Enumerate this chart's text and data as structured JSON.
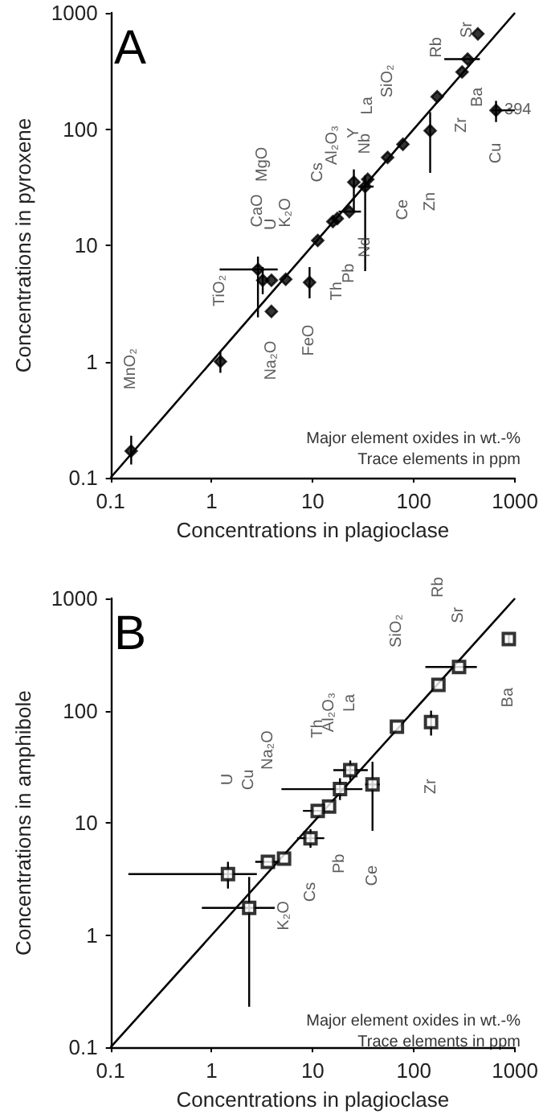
{
  "chart_data": [
    {
      "type": "scatter",
      "title": "A",
      "xlabel": "Concentrations in plagioclase",
      "ylabel": "Concentrations in pyroxene",
      "log": "xy",
      "xlim": [
        0.1,
        1000
      ],
      "ylim": [
        0.1,
        1000
      ],
      "xticks": [
        0.1,
        1,
        10,
        100,
        1000
      ],
      "yticks": [
        0.1,
        1,
        10,
        100,
        1000
      ],
      "grid": false,
      "marker": "diamond",
      "series": [
        {
          "color": "#000000",
          "x": [
            0.16,
            1.22,
            2.87,
            3.2,
            3.9,
            5.4,
            3.9,
            9.3,
            11.2,
            15.8,
            17.5,
            23,
            25.5,
            33,
            35,
            55,
            78,
            145,
            170,
            300,
            340,
            430,
            650
          ],
          "values": [
            0.17,
            1.0,
            6.2,
            5.0,
            5.0,
            5.1,
            2.7,
            4.8,
            11,
            16,
            17,
            19.5,
            35,
            32,
            37,
            57,
            74,
            97,
            190,
            310,
            400,
            660,
            145
          ],
          "errors": [
            [
              0.13,
              0.23
            ],
            [
              0.8,
              1.2
            ],
            [
              2.4,
              8
            ],
            [
              3.8,
              6.5
            ],
            null,
            null,
            null,
            [
              3.5,
              6.5
            ],
            null,
            null,
            null,
            null,
            [
              20,
              45
            ],
            [
              6,
              40
            ],
            null,
            null,
            null,
            [
              42,
              140
            ],
            null,
            null,
            null,
            null,
            [
              115,
              175
            ]
          ],
          "xerrors": [
            null,
            null,
            [
              1.2,
              4.5
            ],
            null,
            null,
            null,
            null,
            null,
            null,
            null,
            null,
            [
              18,
              30
            ],
            null,
            [
              28,
              40
            ],
            null,
            null,
            null,
            null,
            null,
            null,
            [
              200,
              450
            ],
            null,
            [
              600,
              1000
            ]
          ]
        },
        {
          "type": "line",
          "color": "#000000",
          "marker": "none",
          "x": [
            0.1,
            1000
          ],
          "values": [
            0.1,
            1000
          ]
        }
      ],
      "annotations": [
        "Major element oxides in wt.-%",
        "Trace elements in ppm",
        "MnO₂",
        "TiO₂",
        "CaO",
        "MgO",
        "U",
        "Na₂O",
        "K₂O",
        "FeO",
        "Cs",
        "Al₂O₃",
        "Th",
        "Pb",
        "Y",
        "Nb",
        "Nd",
        "La",
        "SiO₂",
        "Ce",
        "Zn",
        "Rb",
        "Zr",
        "Sr",
        "Ba",
        "Cu",
        "394"
      ]
    },
    {
      "type": "scatter",
      "title": "B",
      "xlabel": "Concentrations in plagioclase",
      "ylabel": "Concentrations in amphibole",
      "log": "xy",
      "xlim": [
        0.1,
        1000
      ],
      "ylim": [
        0.1,
        1000
      ],
      "xticks": [
        0.1,
        1,
        10,
        100,
        1000
      ],
      "yticks": [
        0.1,
        1,
        10,
        100,
        1000
      ],
      "grid": false,
      "marker": "square",
      "series": [
        {
          "color": "#000000",
          "x": [
            870,
            280,
            175,
            148,
            68,
            39,
            23.5,
            18.6,
            14.5,
            11.2,
            9.5,
            5.2,
            3.6,
            1.45,
            2.35
          ],
          "values": [
            435,
            245,
            170,
            79,
            72,
            22,
            29.5,
            20,
            14,
            12.8,
            7.3,
            4.8,
            4.5,
            3.5,
            1.75
          ],
          "errors": [
            [
              390,
              480
            ],
            null,
            null,
            [
              60,
              100
            ],
            null,
            [
              8.5,
              35
            ],
            [
              24,
              36
            ],
            [
              16,
              25
            ],
            null,
            null,
            [
              6,
              8.8
            ],
            null,
            null,
            [
              2.6,
              4.5
            ],
            [
              0.23,
              3.3
            ]
          ],
          "xerrors": [
            null,
            [
              130,
              420
            ],
            null,
            null,
            null,
            [
              33,
              46
            ],
            [
              16,
              35
            ],
            [
              4.9,
              31
            ],
            null,
            [
              8,
              15
            ],
            [
              7,
              13
            ],
            null,
            [
              2.7,
              4.8
            ],
            [
              0.15,
              2.8
            ],
            [
              0.8,
              4.2
            ]
          ]
        },
        {
          "type": "line",
          "color": "#000000",
          "marker": "none",
          "x": [
            0.1,
            1000
          ],
          "values": [
            0.1,
            1000
          ]
        }
      ],
      "annotations": [
        "Major element oxides in wt.-%",
        "Trace elements in ppm",
        "U",
        "Cu",
        "Na₂O",
        "Th",
        "Al₂O₃",
        "La",
        "SiO₂",
        "Rb",
        "Sr",
        "Ba",
        "Zr",
        "K₂O",
        "Cs",
        "Pb",
        "Ce"
      ]
    }
  ]
}
